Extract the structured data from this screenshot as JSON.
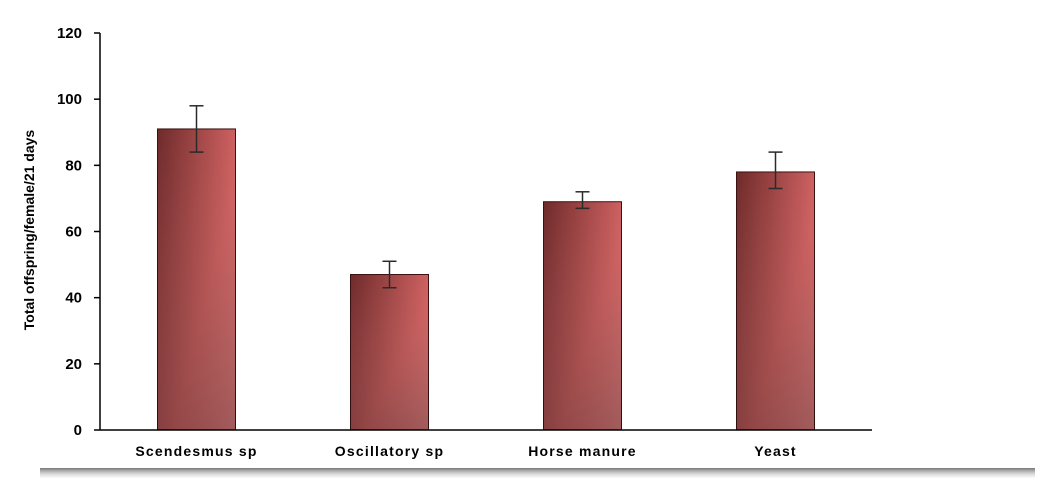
{
  "chart_data": {
    "type": "bar",
    "categories": [
      "Scendesmus sp",
      "Oscillatory sp",
      "Horse manure",
      "Yeast"
    ],
    "values": [
      91,
      47,
      69,
      78
    ],
    "error_low": [
      84,
      43,
      67,
      73
    ],
    "error_high": [
      98,
      51,
      72,
      84
    ],
    "title": "",
    "xlabel": "",
    "ylabel": "Total offspring/female/21 days",
    "ylim": [
      0,
      120
    ],
    "yticks": [
      0,
      20,
      40,
      60,
      80,
      100,
      120
    ],
    "grid": false,
    "legend": "none",
    "colors": {
      "bar_light": "#f98c8c",
      "bar_dark": "#6e2a2a",
      "axis": "#000000",
      "error_bar": "#2a2a2a"
    }
  }
}
